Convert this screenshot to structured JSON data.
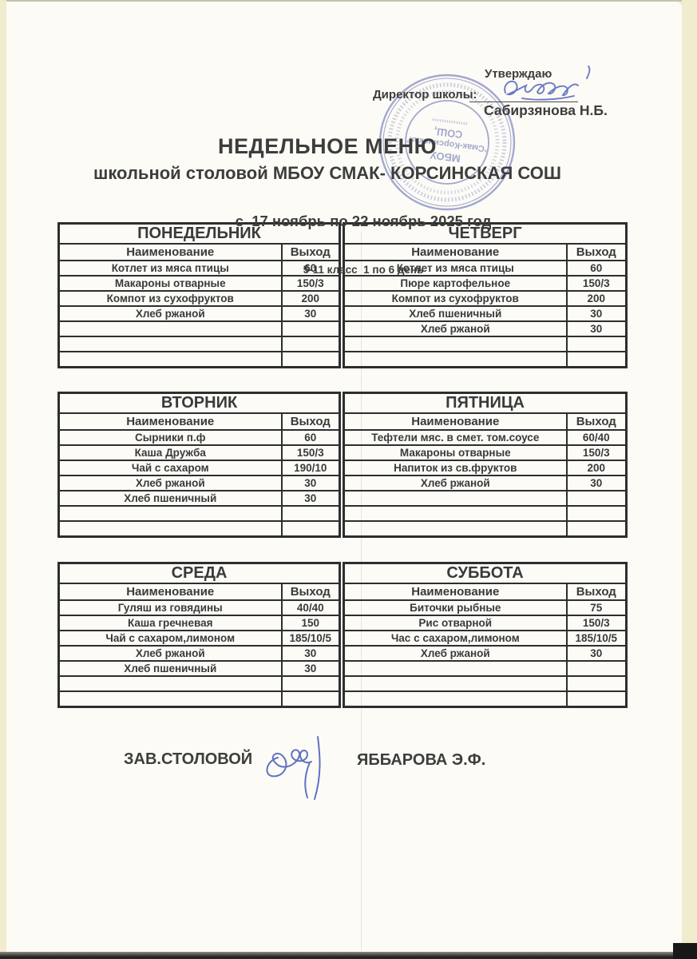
{
  "document": {
    "approve_line": "Утверждаю",
    "director_label": "Директор школы:",
    "director_name": "Сабирзянова Н.Б.",
    "title": "НЕДЕЛЬНОЕ МЕНЮ",
    "subtitle": "школьной столовой МБОУ СМАК- КОРСИНСКАЯ СОШ",
    "date_range": "с  17 ноябрь по 22 ноябрь 2025 год",
    "class_line": "5-11 класс  1 по 6 день"
  },
  "stamp": {
    "line1": "МБОУ",
    "line2": "\"Смак-Корсинская\"",
    "line3": "СОШ,",
    "color": "#8f96c6"
  },
  "table_headers": {
    "name": "Наименование",
    "output": "Выход"
  },
  "menu": {
    "blocks": [
      {
        "left": {
          "day": "ПОНЕДЕЛЬНИК",
          "rows": [
            [
              "Котлет из мяса птицы",
              "60"
            ],
            [
              "Макароны отварные",
              "150/3"
            ],
            [
              "Компот из сухофруктов",
              "200"
            ],
            [
              "Хлеб ржаной",
              "30"
            ],
            [
              "",
              ""
            ],
            [
              "",
              ""
            ],
            [
              "",
              ""
            ]
          ]
        },
        "right": {
          "day": "ЧЕТВЕРГ",
          "rows": [
            [
              "Котлет из мяса птицы",
              "60"
            ],
            [
              "Пюре картофельное",
              "150/3"
            ],
            [
              "Компот из сухофруктов",
              "200"
            ],
            [
              "Хлеб пшеничный",
              "30"
            ],
            [
              "Хлеб ржаной",
              "30"
            ],
            [
              "",
              ""
            ],
            [
              "",
              ""
            ]
          ]
        }
      },
      {
        "left": {
          "day": "ВТОРНИК",
          "rows": [
            [
              "Сырники п.ф",
              "60"
            ],
            [
              "Каша Дружба",
              "150/3"
            ],
            [
              "Чай с сахаром",
              "190/10"
            ],
            [
              "Хлеб ржаной",
              "30"
            ],
            [
              "Хлеб пшеничный",
              "30"
            ],
            [
              "",
              ""
            ],
            [
              "",
              ""
            ]
          ]
        },
        "right": {
          "day": "ПЯТНИЦА",
          "rows": [
            [
              "Тефтели мяс. в смет. том.соусе",
              "60/40"
            ],
            [
              "Макароны отварные",
              "150/3"
            ],
            [
              "Напиток из св.фруктов",
              "200"
            ],
            [
              "Хлеб ржаной",
              "30"
            ],
            [
              "",
              ""
            ],
            [
              "",
              ""
            ],
            [
              "",
              ""
            ]
          ]
        }
      },
      {
        "left": {
          "day": "СРЕДА",
          "rows": [
            [
              "Гуляш из говядины",
              "40/40"
            ],
            [
              "Каша гречневая",
              "150"
            ],
            [
              "Чай с сахаром,лимоном",
              "185/10/5"
            ],
            [
              "Хлеб ржаной",
              "30"
            ],
            [
              "Хлеб пшеничный",
              "30"
            ],
            [
              "",
              ""
            ],
            [
              "",
              ""
            ]
          ]
        },
        "right": {
          "day": "СУББОТА",
          "rows": [
            [
              "Биточки рыбные",
              "75"
            ],
            [
              "Рис отварной",
              "150/3"
            ],
            [
              "Час с сахаром,лимоном",
              "185/10/5"
            ],
            [
              "Хлеб ржаной",
              "30"
            ],
            [
              "",
              ""
            ],
            [
              "",
              ""
            ],
            [
              "",
              ""
            ]
          ]
        }
      }
    ]
  },
  "footer": {
    "role": "ЗАВ.СТОЛОВОЙ",
    "name": "ЯББАРОВА Э.Ф."
  },
  "colors": {
    "paper": "#fcfbf6",
    "scan_background": "#f2ecce",
    "ink": "#3d3d3d",
    "table_border": "#2e2e2e",
    "stamp": "#8f96c6",
    "pen": "#5b6cc0"
  }
}
